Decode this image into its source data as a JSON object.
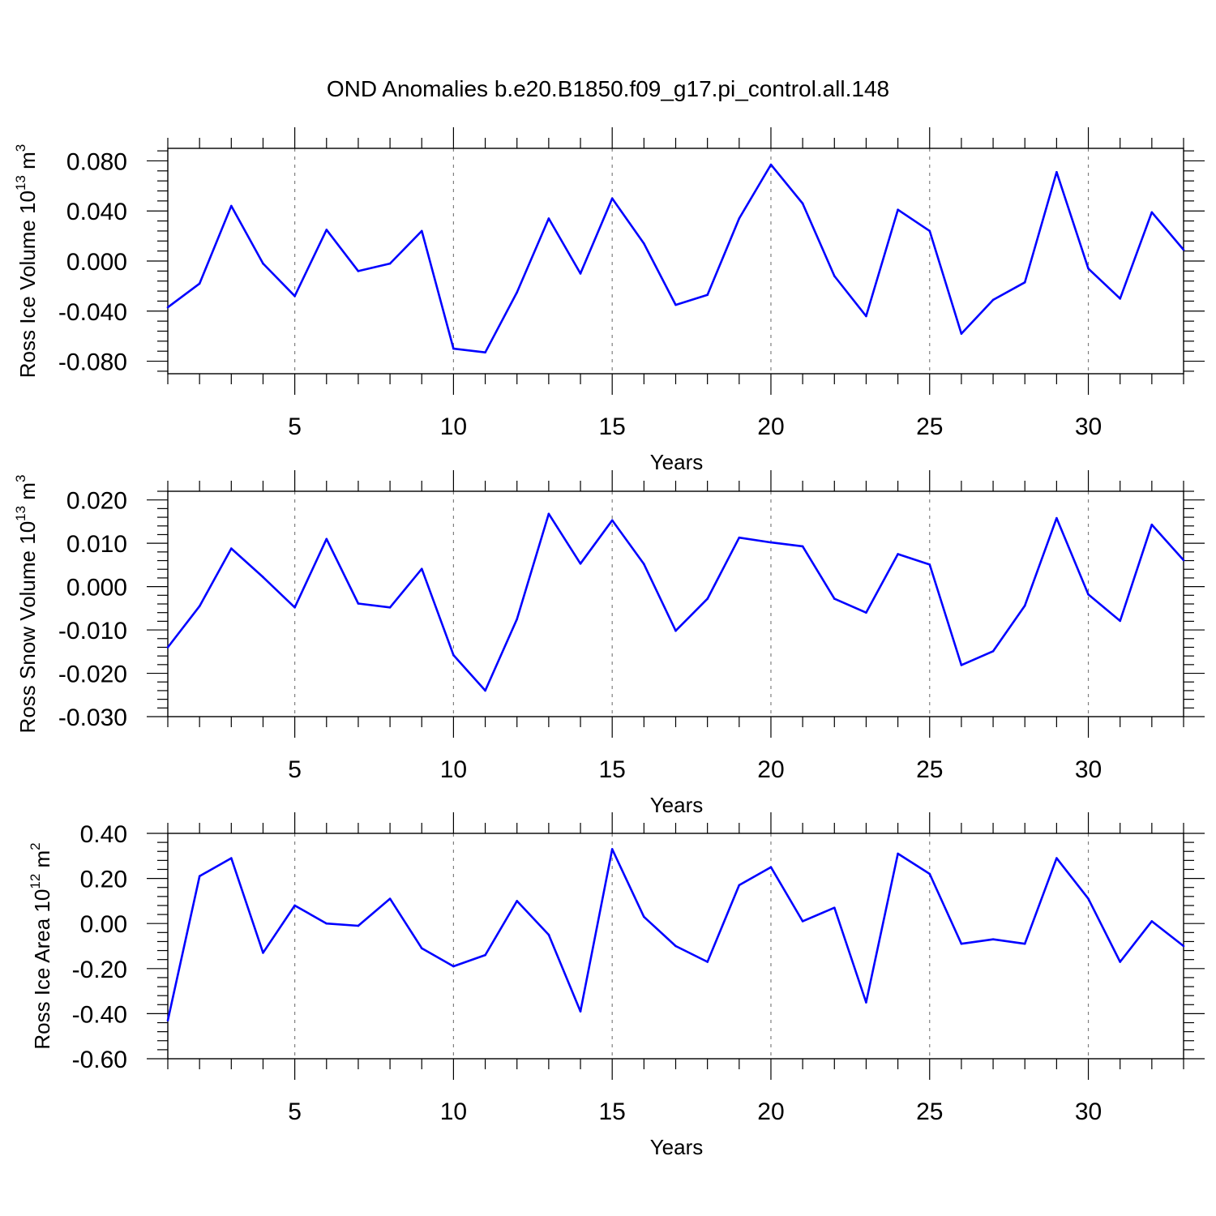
{
  "title": "OND Anomalies b.e20.B1850.f09_g17.pi_control.all.148",
  "chart_data": [
    {
      "type": "line",
      "ylabel": "Ross Ice Volume 10",
      "ylabel_exponent": "13",
      "ylabel_unit": "m",
      "ylabel_unit_exponent": "3",
      "xlabel": "Years",
      "xlim": [
        1,
        33
      ],
      "ylim": [
        -0.09,
        0.09
      ],
      "yticks": [
        -0.08,
        -0.04,
        0.0,
        0.04,
        0.08
      ],
      "ytick_labels": [
        "-0.080",
        "-0.040",
        "0.000",
        "0.040",
        "0.080"
      ],
      "xticks": [
        5,
        10,
        15,
        20,
        25,
        30
      ],
      "xtick_labels": [
        "5",
        "10",
        "15",
        "20",
        "25",
        "30"
      ],
      "grid_x": [
        5,
        10,
        15,
        20,
        25,
        30
      ],
      "color": "#0000ff",
      "x": [
        1,
        2,
        3,
        4,
        5,
        6,
        7,
        8,
        9,
        10,
        11,
        12,
        13,
        14,
        15,
        16,
        17,
        18,
        19,
        20,
        21,
        22,
        23,
        24,
        25,
        26,
        27,
        28,
        29,
        30,
        31,
        32,
        33
      ],
      "values": [
        -0.037,
        -0.018,
        0.044,
        -0.002,
        -0.028,
        0.025,
        -0.008,
        -0.002,
        0.024,
        -0.07,
        -0.073,
        -0.025,
        0.034,
        -0.01,
        0.05,
        0.014,
        -0.035,
        -0.027,
        0.034,
        0.077,
        0.046,
        -0.012,
        -0.044,
        0.041,
        0.024,
        -0.058,
        -0.031,
        -0.017,
        0.071,
        -0.006,
        -0.03,
        0.039,
        0.009
      ]
    },
    {
      "type": "line",
      "ylabel": "Ross Snow Volume 10",
      "ylabel_exponent": "13",
      "ylabel_unit": "m",
      "ylabel_unit_exponent": "3",
      "xlabel": "Years",
      "xlim": [
        1,
        33
      ],
      "ylim": [
        -0.03,
        0.022
      ],
      "yticks": [
        -0.03,
        -0.02,
        -0.01,
        0.0,
        0.01,
        0.02
      ],
      "ytick_labels": [
        "-0.030",
        "-0.020",
        "-0.010",
        "0.000",
        "0.010",
        "0.020"
      ],
      "xticks": [
        5,
        10,
        15,
        20,
        25,
        30
      ],
      "xtick_labels": [
        "5",
        "10",
        "15",
        "20",
        "25",
        "30"
      ],
      "grid_x": [
        5,
        10,
        15,
        20,
        25,
        30
      ],
      "color": "#0000ff",
      "x": [
        1,
        2,
        3,
        4,
        5,
        6,
        7,
        8,
        9,
        10,
        11,
        12,
        13,
        14,
        15,
        16,
        17,
        18,
        19,
        20,
        21,
        22,
        23,
        24,
        25,
        26,
        27,
        28,
        29,
        30,
        31,
        32,
        33
      ],
      "values": [
        -0.014,
        -0.0045,
        0.0088,
        0.0022,
        -0.0048,
        0.011,
        -0.0039,
        -0.0048,
        0.0041,
        -0.0158,
        -0.024,
        -0.0075,
        0.0168,
        0.0053,
        0.0153,
        0.0052,
        -0.0102,
        -0.0028,
        0.0113,
        0.0102,
        0.0093,
        -0.0028,
        -0.006,
        0.0075,
        0.0051,
        -0.0181,
        -0.0149,
        -0.0044,
        0.0158,
        -0.0018,
        -0.0079,
        0.0143,
        0.0061
      ]
    },
    {
      "type": "line",
      "ylabel": "Ross Ice Area 10",
      "ylabel_exponent": "12",
      "ylabel_unit": "m",
      "ylabel_unit_exponent": "2",
      "xlabel": "Years",
      "xlim": [
        1,
        33
      ],
      "ylim": [
        -0.6,
        0.4
      ],
      "yticks": [
        -0.6,
        -0.4,
        -0.2,
        0.0,
        0.2,
        0.4
      ],
      "ytick_labels": [
        "-0.60",
        "-0.40",
        "-0.20",
        "0.00",
        "0.20",
        "0.40"
      ],
      "xticks": [
        5,
        10,
        15,
        20,
        25,
        30
      ],
      "xtick_labels": [
        "5",
        "10",
        "15",
        "20",
        "25",
        "30"
      ],
      "grid_x": [
        5,
        10,
        15,
        20,
        25,
        30
      ],
      "color": "#0000ff",
      "x": [
        1,
        2,
        3,
        4,
        5,
        6,
        7,
        8,
        9,
        10,
        11,
        12,
        13,
        14,
        15,
        16,
        17,
        18,
        19,
        20,
        21,
        22,
        23,
        24,
        25,
        26,
        27,
        28,
        29,
        30,
        31,
        32,
        33
      ],
      "values": [
        -0.43,
        0.21,
        0.29,
        -0.13,
        0.08,
        0.0,
        -0.01,
        0.11,
        -0.11,
        -0.19,
        -0.14,
        0.1,
        -0.05,
        -0.39,
        0.33,
        0.03,
        -0.1,
        -0.17,
        0.17,
        0.25,
        0.01,
        0.07,
        -0.35,
        0.31,
        0.22,
        -0.09,
        -0.07,
        -0.09,
        0.29,
        0.11,
        -0.17,
        0.01,
        -0.1
      ]
    }
  ]
}
